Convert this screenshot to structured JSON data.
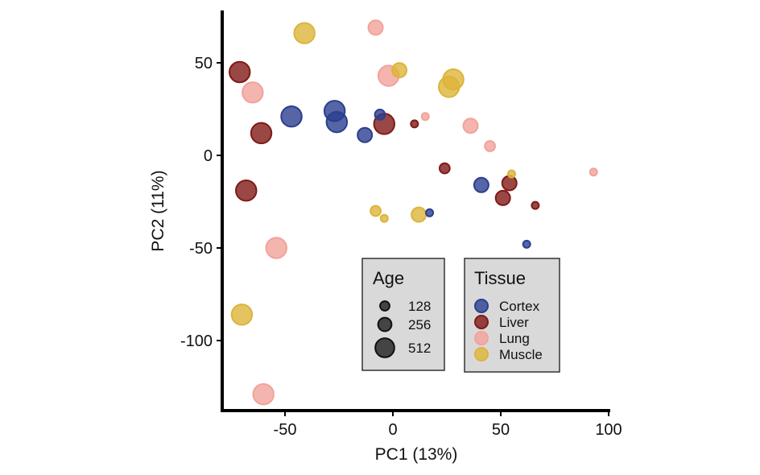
{
  "chart_data": {
    "type": "scatter",
    "title": "",
    "xlabel": "PC1 (13%)",
    "ylabel": "PC2 (11%)",
    "xlim": [
      -78,
      101
    ],
    "ylim": [
      -140,
      78
    ],
    "xticks": [
      -50,
      0,
      50,
      100
    ],
    "xtick_labels": [
      "-50",
      "0",
      "50",
      "100"
    ],
    "yticks": [
      50,
      0,
      -50,
      -100
    ],
    "ytick_labels": [
      "50",
      "0",
      "-50",
      "-100"
    ],
    "grid": false,
    "size_legend": {
      "title": "Age",
      "entries": [
        {
          "label": "128",
          "value": 128
        },
        {
          "label": "256",
          "value": 256
        },
        {
          "label": "512",
          "value": 512
        }
      ]
    },
    "color_legend": {
      "title": "Tissue",
      "entries": [
        {
          "label": "Cortex",
          "color": "#2B3F8F"
        },
        {
          "label": "Liver",
          "color": "#7F1A17"
        },
        {
          "label": "Lung",
          "color": "#F2A29B"
        },
        {
          "label": "Muscle",
          "color": "#DDB43A"
        }
      ]
    },
    "points": [
      {
        "tissue": "Cortex",
        "x": -47,
        "y": 21,
        "age": 512
      },
      {
        "tissue": "Cortex",
        "x": -27,
        "y": 24,
        "age": 512
      },
      {
        "tissue": "Cortex",
        "x": -26,
        "y": 18,
        "age": 512
      },
      {
        "tissue": "Cortex",
        "x": -13,
        "y": 11,
        "age": 256
      },
      {
        "tissue": "Cortex",
        "x": -6,
        "y": 22,
        "age": 128
      },
      {
        "tissue": "Cortex",
        "x": 17,
        "y": -31,
        "age": 64
      },
      {
        "tissue": "Cortex",
        "x": 41,
        "y": -16,
        "age": 256
      },
      {
        "tissue": "Cortex",
        "x": 62,
        "y": -48,
        "age": 64
      },
      {
        "tissue": "Liver",
        "x": -71,
        "y": 45,
        "age": 512
      },
      {
        "tissue": "Liver",
        "x": -61,
        "y": 12,
        "age": 512
      },
      {
        "tissue": "Liver",
        "x": -68,
        "y": -19,
        "age": 512
      },
      {
        "tissue": "Liver",
        "x": -4,
        "y": 17,
        "age": 512
      },
      {
        "tissue": "Liver",
        "x": 10,
        "y": 17,
        "age": 64
      },
      {
        "tissue": "Liver",
        "x": 24,
        "y": -7,
        "age": 128
      },
      {
        "tissue": "Liver",
        "x": 51,
        "y": -23,
        "age": 256
      },
      {
        "tissue": "Liver",
        "x": 54,
        "y": -15,
        "age": 256
      },
      {
        "tissue": "Liver",
        "x": 66,
        "y": -27,
        "age": 64
      },
      {
        "tissue": "Lung",
        "x": -65,
        "y": 34,
        "age": 512
      },
      {
        "tissue": "Lung",
        "x": -54,
        "y": -50,
        "age": 512
      },
      {
        "tissue": "Lung",
        "x": -60,
        "y": -129,
        "age": 512
      },
      {
        "tissue": "Lung",
        "x": -8,
        "y": 69,
        "age": 256
      },
      {
        "tissue": "Lung",
        "x": -2,
        "y": 43,
        "age": 512
      },
      {
        "tissue": "Lung",
        "x": 15,
        "y": 21,
        "age": 64
      },
      {
        "tissue": "Lung",
        "x": 36,
        "y": 16,
        "age": 256
      },
      {
        "tissue": "Lung",
        "x": 45,
        "y": 5,
        "age": 128
      },
      {
        "tissue": "Lung",
        "x": 93,
        "y": -9,
        "age": 64
      },
      {
        "tissue": "Muscle",
        "x": -41,
        "y": 66,
        "age": 512
      },
      {
        "tissue": "Muscle",
        "x": 3,
        "y": 46,
        "age": 256
      },
      {
        "tissue": "Muscle",
        "x": 26,
        "y": 37,
        "age": 512
      },
      {
        "tissue": "Muscle",
        "x": 28,
        "y": 41,
        "age": 512
      },
      {
        "tissue": "Muscle",
        "x": -8,
        "y": -30,
        "age": 128
      },
      {
        "tissue": "Muscle",
        "x": -4,
        "y": -34,
        "age": 64
      },
      {
        "tissue": "Muscle",
        "x": 12,
        "y": -32,
        "age": 256
      },
      {
        "tissue": "Muscle",
        "x": 55,
        "y": -10,
        "age": 64
      },
      {
        "tissue": "Muscle",
        "x": -70,
        "y": -86,
        "age": 512
      }
    ]
  }
}
